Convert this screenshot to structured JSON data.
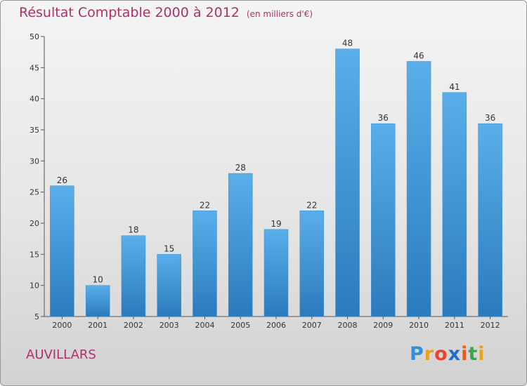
{
  "chart_data": {
    "type": "bar",
    "title": "Résultat Comptable 2000 à 2012",
    "subtitle": "(en milliers d'€)",
    "categories": [
      "2000",
      "2001",
      "2002",
      "2003",
      "2004",
      "2005",
      "2006",
      "2007",
      "2008",
      "2009",
      "2010",
      "2011",
      "2012"
    ],
    "values": [
      26,
      10,
      18,
      15,
      22,
      28,
      19,
      22,
      48,
      36,
      46,
      41,
      36
    ],
    "ylim": [
      5,
      50
    ],
    "yticks": [
      5,
      10,
      15,
      20,
      25,
      30,
      35,
      40,
      45,
      50
    ],
    "xlabel": "",
    "ylabel": "",
    "grid": false
  },
  "place_name": "AUVILLARS",
  "brand": {
    "letters": [
      "P",
      "r",
      "o",
      "x",
      "i",
      "t",
      "i"
    ],
    "colors": [
      "#2f8fd8",
      "#e8a21c",
      "#e8452c",
      "#1f6fc8",
      "#e85a1c",
      "#3aa84a",
      "#e8a21c"
    ]
  },
  "colors": {
    "bar_light": "#5aaeea",
    "bar_dark": "#2a7bbd",
    "title": "#b0306a"
  }
}
